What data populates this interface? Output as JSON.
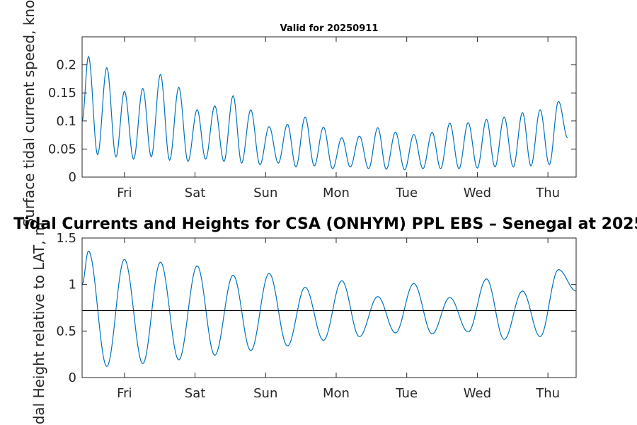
{
  "figure": {
    "subtitle": "Valid for 20250911",
    "main_title": "Tidal Currents and Heights for CSA (ONHYM) PPL EBS  – Senegal at 2025"
  },
  "colors": {
    "series": "#0072BD",
    "reference_line": "#000000",
    "axes": "#262626"
  },
  "chart_data": [
    {
      "type": "line",
      "ylabel": "Surface tidal current speed, knots",
      "ylim": [
        0,
        0.25
      ],
      "yticks": [
        0,
        0.05,
        0.1,
        0.15,
        0.2
      ],
      "ytick_labels": [
        "0",
        "0.05",
        "0.1",
        "0.15",
        "0.2"
      ],
      "xlim_days": [
        0,
        7.0
      ],
      "xticks_days": [
        0.6,
        1.6,
        2.6,
        3.6,
        4.6,
        5.6,
        6.6
      ],
      "xtick_labels": [
        "Fri",
        "Sat",
        "Sun",
        "Mon",
        "Tue",
        "Wed",
        "Thu"
      ],
      "peaks": [
        [
          0.09,
          0.215
        ],
        [
          0.35,
          0.195
        ],
        [
          0.6,
          0.153
        ],
        [
          0.86,
          0.158
        ],
        [
          1.11,
          0.183
        ],
        [
          1.37,
          0.16
        ],
        [
          1.63,
          0.12
        ],
        [
          1.88,
          0.127
        ],
        [
          2.14,
          0.145
        ],
        [
          2.39,
          0.12
        ],
        [
          2.65,
          0.09
        ],
        [
          2.91,
          0.094
        ],
        [
          3.16,
          0.107
        ],
        [
          3.42,
          0.089
        ],
        [
          3.68,
          0.07
        ],
        [
          3.93,
          0.073
        ],
        [
          4.19,
          0.088
        ],
        [
          4.44,
          0.08
        ],
        [
          4.7,
          0.076
        ],
        [
          4.96,
          0.08
        ],
        [
          5.21,
          0.096
        ],
        [
          5.47,
          0.097
        ],
        [
          5.73,
          0.103
        ],
        [
          5.98,
          0.107
        ],
        [
          6.24,
          0.115
        ],
        [
          6.49,
          0.12
        ],
        [
          6.75,
          0.135
        ]
      ],
      "troughs": [
        [
          0.0,
          0.1
        ],
        [
          0.22,
          0.04
        ],
        [
          0.48,
          0.036
        ],
        [
          0.73,
          0.032
        ],
        [
          0.98,
          0.036
        ],
        [
          1.24,
          0.03
        ],
        [
          1.5,
          0.028
        ],
        [
          1.75,
          0.032
        ],
        [
          2.01,
          0.028
        ],
        [
          2.26,
          0.025
        ],
        [
          2.52,
          0.022
        ],
        [
          2.78,
          0.025
        ],
        [
          3.03,
          0.018
        ],
        [
          3.29,
          0.02
        ],
        [
          3.55,
          0.015
        ],
        [
          3.8,
          0.018
        ],
        [
          4.06,
          0.015
        ],
        [
          4.31,
          0.014
        ],
        [
          4.57,
          0.013
        ],
        [
          4.83,
          0.015
        ],
        [
          5.08,
          0.015
        ],
        [
          5.34,
          0.015
        ],
        [
          5.6,
          0.016
        ],
        [
          5.85,
          0.018
        ],
        [
          6.11,
          0.018
        ],
        [
          6.36,
          0.02
        ],
        [
          6.62,
          0.022
        ],
        [
          6.88,
          0.07
        ]
      ],
      "grid": false,
      "series_color": "#0072BD"
    },
    {
      "type": "line",
      "ylabel": "Tidal Height relative to LAT, m",
      "ylim": [
        0,
        1.5
      ],
      "yticks": [
        0,
        0.5,
        1,
        1.5
      ],
      "ytick_labels": [
        "0",
        "0.5",
        "1",
        "1.5"
      ],
      "xlim_days": [
        0,
        7.0
      ],
      "xticks_days": [
        0.6,
        1.6,
        2.6,
        3.6,
        4.6,
        5.6,
        6.6
      ],
      "xtick_labels": [
        "Fri",
        "Sat",
        "Sun",
        "Mon",
        "Tue",
        "Wed",
        "Thu"
      ],
      "reference_level": 0.72,
      "highs": [
        [
          0.09,
          1.36
        ],
        [
          0.6,
          1.27
        ],
        [
          1.11,
          1.24
        ],
        [
          1.63,
          1.2
        ],
        [
          2.14,
          1.1
        ],
        [
          2.65,
          1.12
        ],
        [
          3.16,
          0.97
        ],
        [
          3.68,
          1.04
        ],
        [
          4.19,
          0.87
        ],
        [
          4.7,
          1.01
        ],
        [
          5.21,
          0.86
        ],
        [
          5.73,
          1.06
        ],
        [
          6.24,
          0.93
        ],
        [
          6.75,
          1.16
        ]
      ],
      "lows": [
        [
          0.0,
          1.0
        ],
        [
          0.35,
          0.12
        ],
        [
          0.86,
          0.15
        ],
        [
          1.37,
          0.19
        ],
        [
          1.88,
          0.24
        ],
        [
          2.39,
          0.29
        ],
        [
          2.91,
          0.34
        ],
        [
          3.42,
          0.4
        ],
        [
          3.93,
          0.44
        ],
        [
          4.44,
          0.48
        ],
        [
          4.96,
          0.47
        ],
        [
          5.47,
          0.49
        ],
        [
          5.98,
          0.41
        ],
        [
          6.49,
          0.44
        ],
        [
          7.0,
          0.93
        ]
      ],
      "grid": false,
      "series_color": "#0072BD"
    }
  ]
}
